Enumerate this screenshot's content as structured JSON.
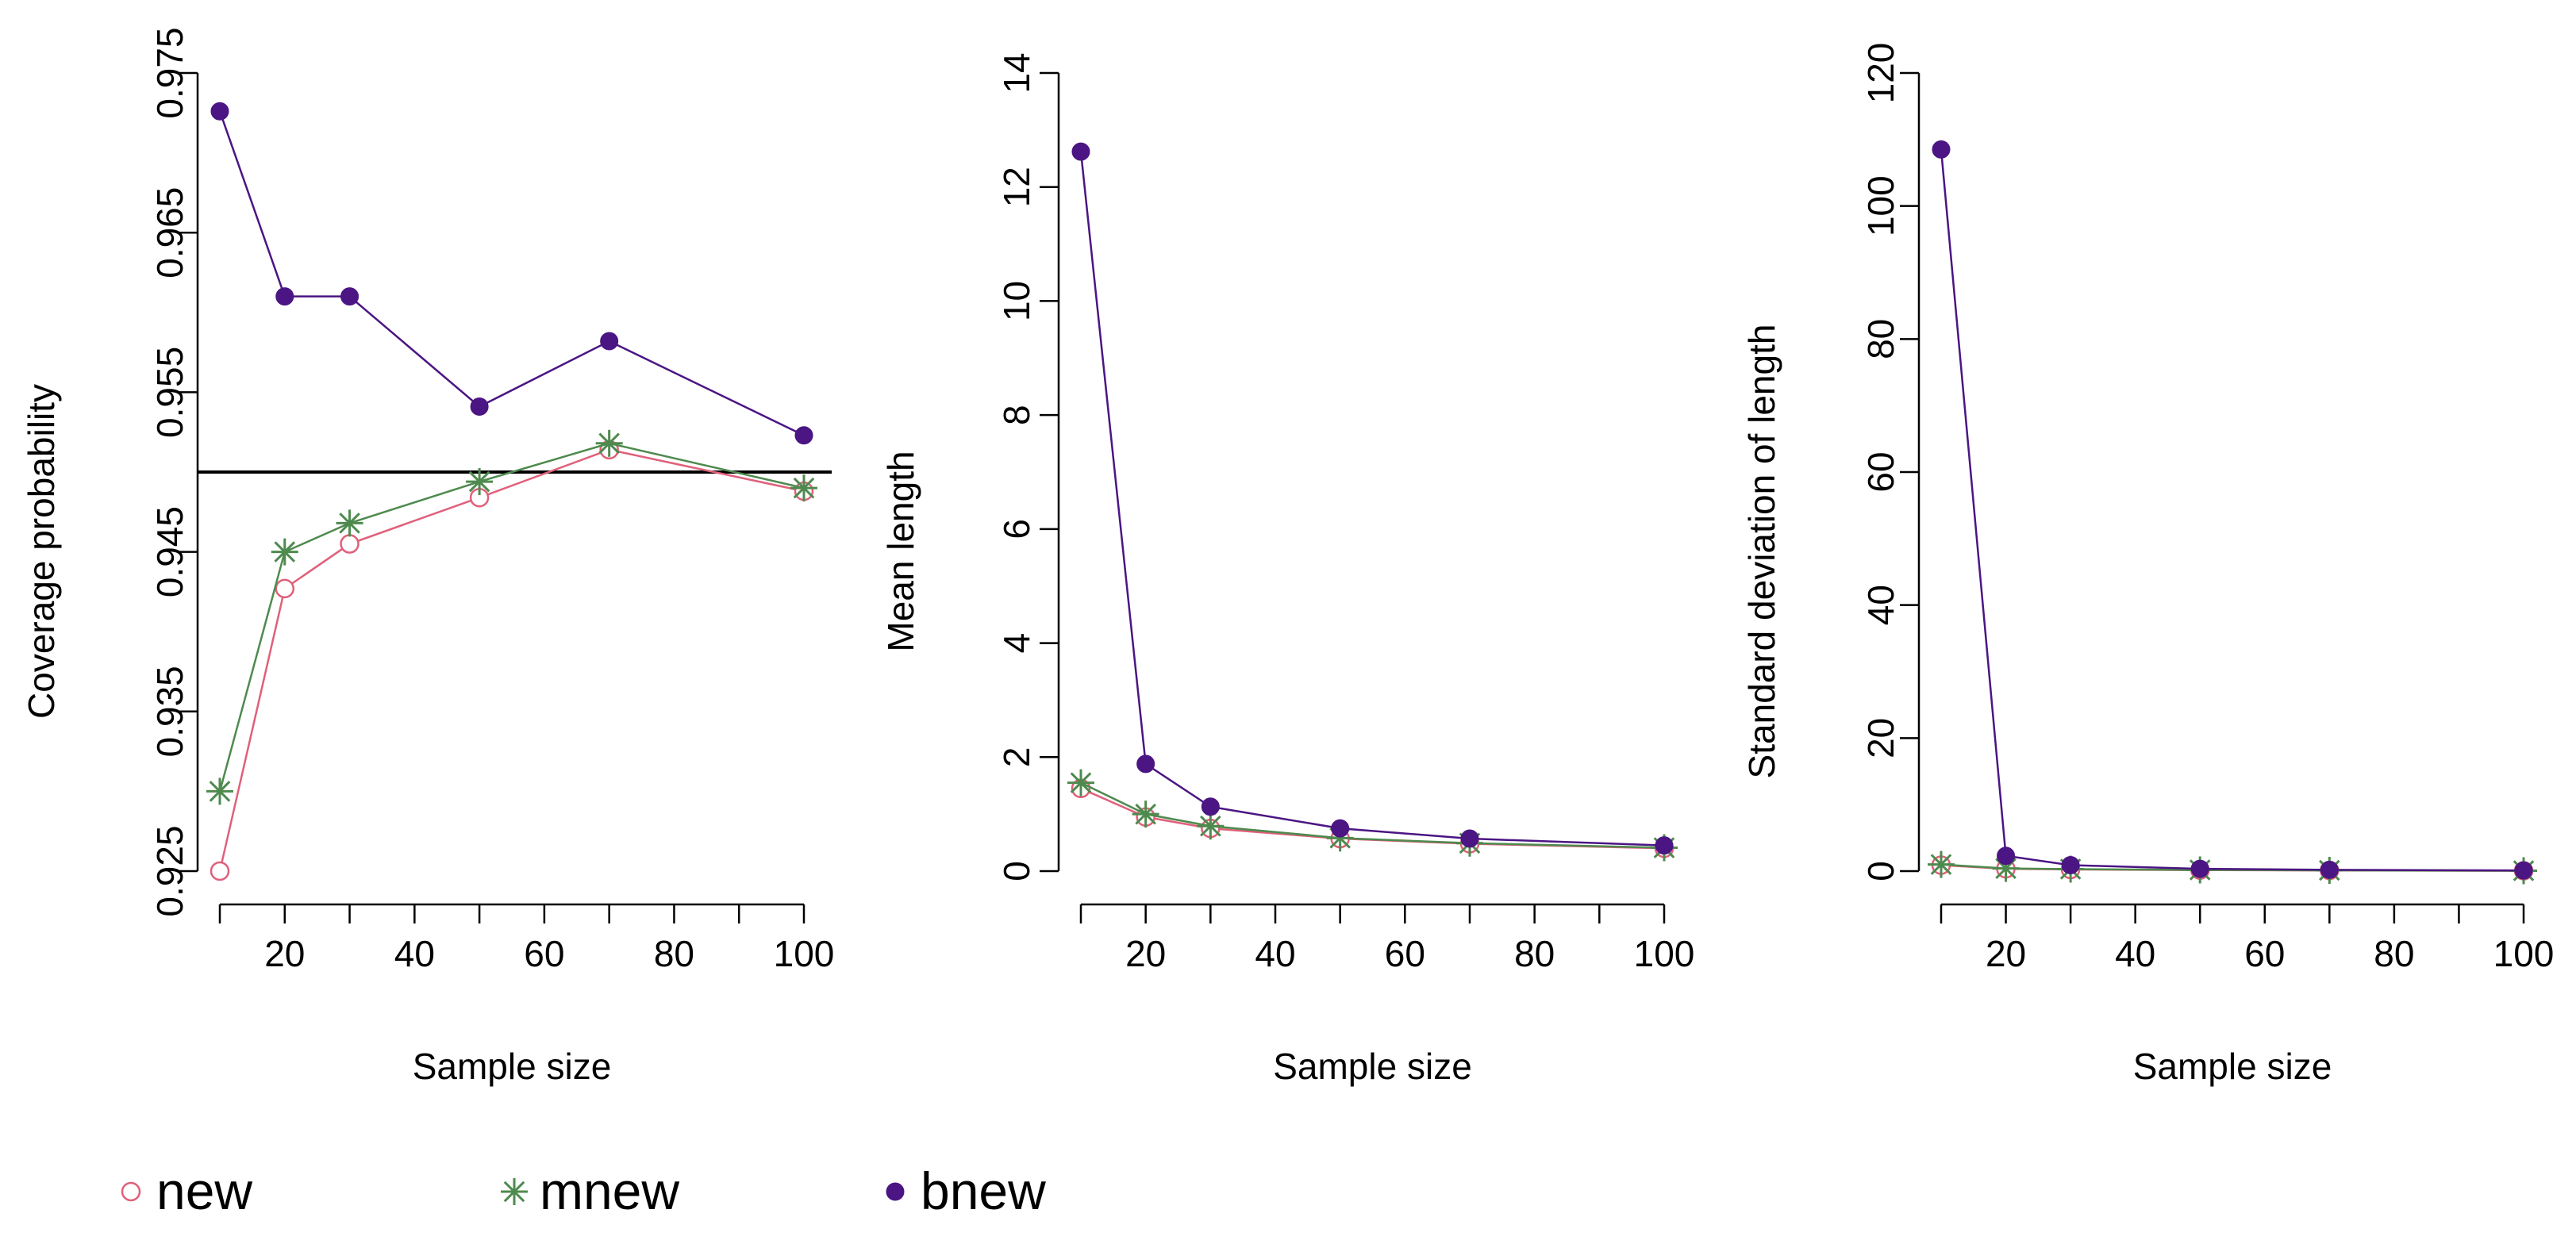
{
  "colors": {
    "new": "#e0607a",
    "mnew": "#4e8a4e",
    "bnew": "#4b1583",
    "reference": "#000000"
  },
  "legend": [
    {
      "key": "new",
      "label": "new",
      "marker": "open-circle"
    },
    {
      "key": "mnew",
      "label": "mnew",
      "marker": "asterisk"
    },
    {
      "key": "bnew",
      "label": "bnew",
      "marker": "filled-circle"
    }
  ],
  "chart_data": [
    {
      "type": "line",
      "title": "",
      "xlabel": "Sample size",
      "ylabel": "Coverage probability",
      "xlim": [
        10,
        100
      ],
      "ylim": [
        0.925,
        0.975
      ],
      "x": [
        10,
        20,
        30,
        50,
        70,
        100
      ],
      "xticks": [
        10,
        20,
        30,
        40,
        50,
        60,
        70,
        80,
        90,
        100
      ],
      "xtick_labels": [
        "",
        "20",
        "",
        "40",
        "",
        "60",
        "",
        "80",
        "",
        "100"
      ],
      "yticks": [
        0.925,
        0.935,
        0.945,
        0.955,
        0.965,
        0.975
      ],
      "ytick_labels": [
        "0.925",
        "0.935",
        "0.945",
        "0.955",
        "0.965",
        "0.975"
      ],
      "hline": 0.95,
      "series": [
        {
          "name": "new",
          "values": [
            0.925,
            0.9427,
            0.9455,
            0.9484,
            0.9514,
            0.9488
          ]
        },
        {
          "name": "mnew",
          "values": [
            0.93,
            0.945,
            0.9468,
            0.9494,
            0.9518,
            0.949
          ]
        },
        {
          "name": "bnew",
          "values": [
            0.9726,
            0.961,
            0.961,
            0.9541,
            0.9582,
            0.9523
          ]
        }
      ]
    },
    {
      "type": "line",
      "title": "",
      "xlabel": "Sample size",
      "ylabel": "Mean length",
      "xlim": [
        10,
        100
      ],
      "ylim": [
        0,
        14
      ],
      "x": [
        10,
        20,
        30,
        50,
        70,
        100
      ],
      "xticks": [
        10,
        20,
        30,
        40,
        50,
        60,
        70,
        80,
        90,
        100
      ],
      "xtick_labels": [
        "",
        "20",
        "",
        "40",
        "",
        "60",
        "",
        "80",
        "",
        "100"
      ],
      "yticks": [
        0,
        2,
        4,
        6,
        8,
        10,
        12,
        14
      ],
      "ytick_labels": [
        "0",
        "2",
        "4",
        "6",
        "8",
        "10",
        "12",
        "14"
      ],
      "series": [
        {
          "name": "new",
          "values": [
            1.45,
            0.95,
            0.75,
            0.57,
            0.48,
            0.4
          ]
        },
        {
          "name": "mnew",
          "values": [
            1.55,
            1.0,
            0.79,
            0.58,
            0.49,
            0.41
          ]
        },
        {
          "name": "bnew",
          "values": [
            12.62,
            1.88,
            1.13,
            0.75,
            0.57,
            0.45
          ]
        }
      ]
    },
    {
      "type": "line",
      "title": "",
      "xlabel": "Sample size",
      "ylabel": "Standard deviation of length",
      "xlim": [
        10,
        100
      ],
      "ylim": [
        0,
        120
      ],
      "x": [
        10,
        20,
        30,
        50,
        70,
        100
      ],
      "xticks": [
        10,
        20,
        30,
        40,
        50,
        60,
        70,
        80,
        90,
        100
      ],
      "xtick_labels": [
        "",
        "20",
        "",
        "40",
        "",
        "60",
        "",
        "80",
        "",
        "100"
      ],
      "yticks": [
        0,
        20,
        40,
        60,
        80,
        100,
        120
      ],
      "ytick_labels": [
        "0",
        "20",
        "40",
        "60",
        "80",
        "100",
        "120"
      ],
      "series": [
        {
          "name": "new",
          "values": [
            0.9,
            0.35,
            0.25,
            0.15,
            0.1,
            0.05
          ]
        },
        {
          "name": "mnew",
          "values": [
            1.0,
            0.4,
            0.3,
            0.18,
            0.12,
            0.06
          ]
        },
        {
          "name": "bnew",
          "values": [
            108.5,
            2.3,
            0.9,
            0.35,
            0.2,
            0.1
          ]
        }
      ]
    }
  ]
}
